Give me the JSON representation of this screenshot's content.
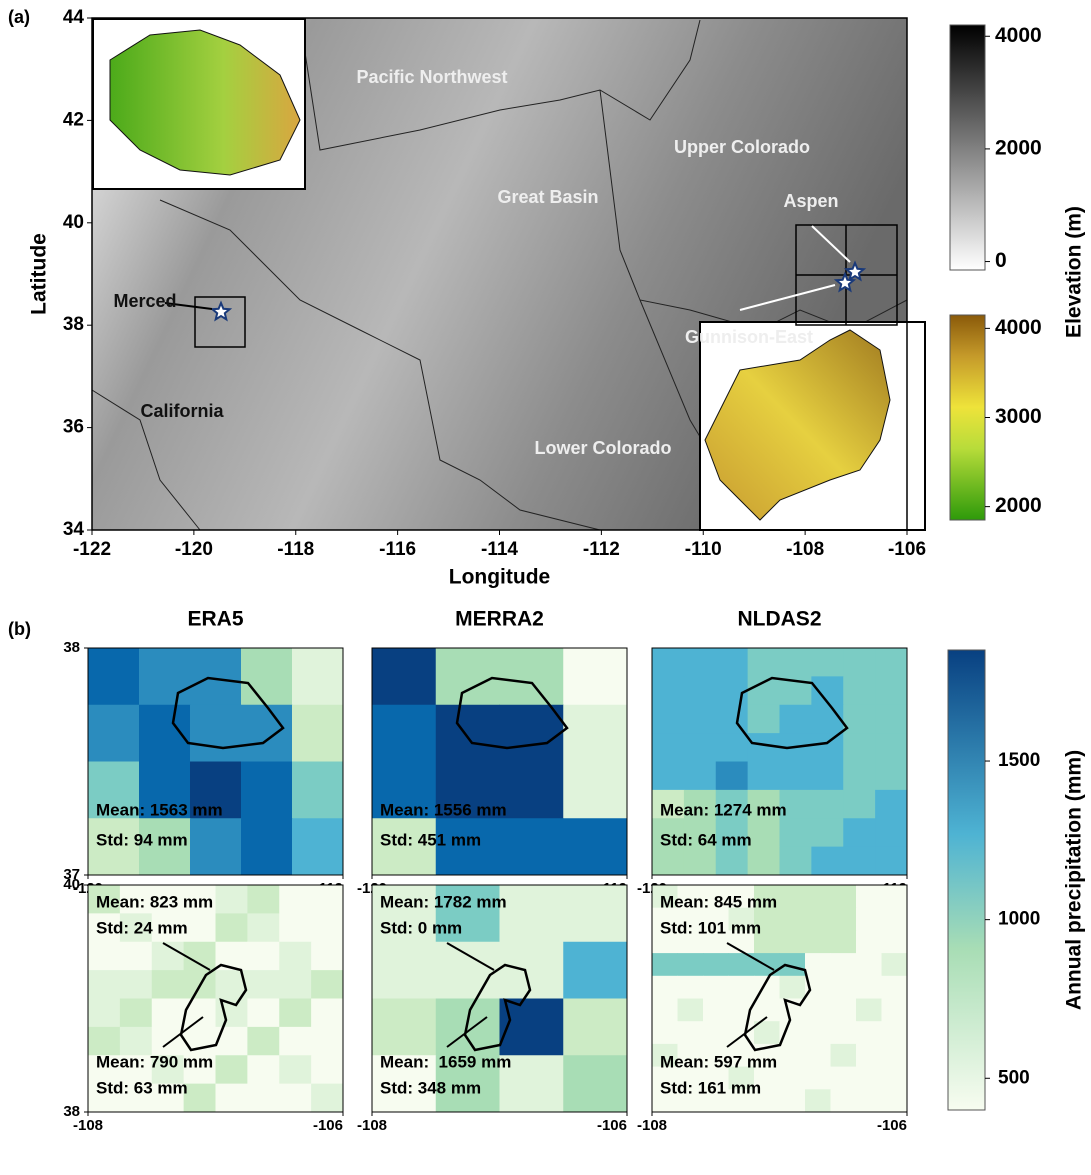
{
  "panel_a": {
    "label": "(a)",
    "xlabel": "Longitude",
    "ylabel": "Latitude",
    "xlim": [
      -122,
      -106
    ],
    "ylim": [
      34,
      44
    ],
    "xticks": [
      -122,
      -120,
      -118,
      -116,
      -114,
      -112,
      -110,
      -108,
      -106
    ],
    "yticks": [
      34,
      36,
      38,
      40,
      42,
      44
    ],
    "regions": [
      "Pacific Northwest",
      "Great Basin",
      "Upper Colorado",
      "Lower Colorado",
      "California"
    ],
    "sites": [
      "Merced",
      "Aspen",
      "Gunnison-East"
    ],
    "colorbar_label": "Elevation (m)",
    "colorbars": [
      {
        "lim": [
          -150,
          4200
        ],
        "ticks": [
          0,
          2000,
          4000
        ]
      },
      {
        "lim": [
          1850,
          4150
        ],
        "ticks": [
          2000,
          3000,
          4000
        ]
      }
    ]
  },
  "panel_b": {
    "label": "(b)",
    "titles": [
      "ERA5",
      "MERRA2",
      "NLDAS2"
    ],
    "rows": [
      {
        "xlim": [
          -120,
          -119
        ],
        "ylim": [
          37,
          38
        ],
        "xticks": [
          -120,
          -119
        ],
        "yticks": [
          37,
          38
        ]
      },
      {
        "xlim": [
          -108,
          -106
        ],
        "ylim": [
          38,
          40
        ],
        "xticks": [
          -108,
          -106
        ],
        "yticks": [
          38,
          40
        ]
      }
    ],
    "stats": [
      [
        [
          "Mean: 1563 mm",
          "Std: 94 mm"
        ],
        [
          "Mean: 1556 mm",
          "Std: 451 mm"
        ],
        [
          "Mean: 1274 mm",
          "Std: 64 mm"
        ]
      ],
      [
        [
          [
            "Mean: 823 mm",
            "Std: 24 mm"
          ],
          [
            "Mean: 790 mm",
            "Std: 63 mm"
          ]
        ],
        [
          [
            "Mean: 1782 mm",
            "Std: 0 mm"
          ],
          [
            "Mean:  1659 mm",
            "Std: 348 mm"
          ]
        ],
        [
          [
            "Mean: 845 mm",
            "Std: 101 mm"
          ],
          [
            "Mean: 597 mm",
            "Std: 161 mm"
          ]
        ]
      ]
    ],
    "colorbar_label": "Annual precipitation (mm)",
    "colorbar": {
      "lim": [
        400,
        1850
      ],
      "ticks": [
        500,
        1000,
        1500
      ]
    }
  }
}
